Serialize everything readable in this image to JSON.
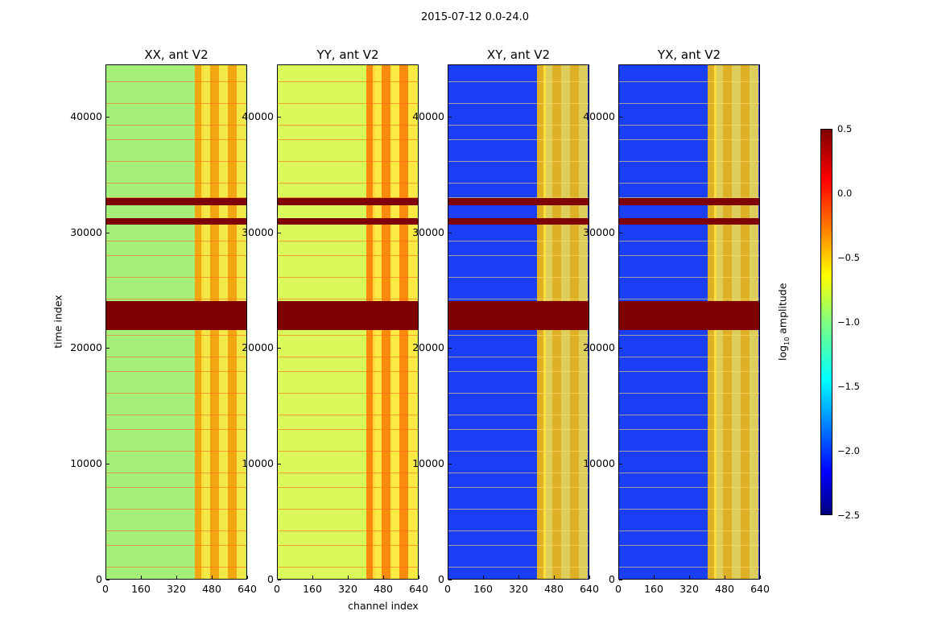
{
  "figure": {
    "suptitle": "2015-07-12 0.0-24.0",
    "xlabel": "channel index",
    "ylabel": "time index"
  },
  "chart_data": {
    "type": "heatmap",
    "title": "2015-07-12 0.0-24.0",
    "panels": [
      {
        "title": "XX, ant V2",
        "base_color": "#a6f07a",
        "active_color": "#ff9a00"
      },
      {
        "title": "YY, ant V2",
        "base_color": "#d9f85a",
        "active_color": "#ff7800"
      },
      {
        "title": "XY, ant V2",
        "base_color": "#1b3ff5",
        "active_color": "#ffc400"
      },
      {
        "title": "YX, ant V2",
        "base_color": "#1b3ff5",
        "active_color": "#ffc400"
      }
    ],
    "xlim": [
      0,
      640
    ],
    "ylim": [
      0,
      44500
    ],
    "xticks": [
      "0",
      "160",
      "320",
      "480",
      "640"
    ],
    "yticks": [
      "0",
      "10000",
      "20000",
      "30000",
      "40000"
    ],
    "flagged_rows": [
      {
        "from": 21600,
        "to": 24100
      },
      {
        "from": 32400,
        "to": 33000
      },
      {
        "from": 30700,
        "to": 31300
      }
    ],
    "colorbar": {
      "label": "log10 amplitude",
      "label_main": "log",
      "label_sub": "10",
      "label_rest": " amplitude",
      "range": [
        -2.5,
        0.5
      ],
      "ticks": [
        "0.5",
        "0.0",
        "−0.5",
        "−1.0",
        "−1.5",
        "−2.0",
        "−2.5"
      ]
    }
  }
}
